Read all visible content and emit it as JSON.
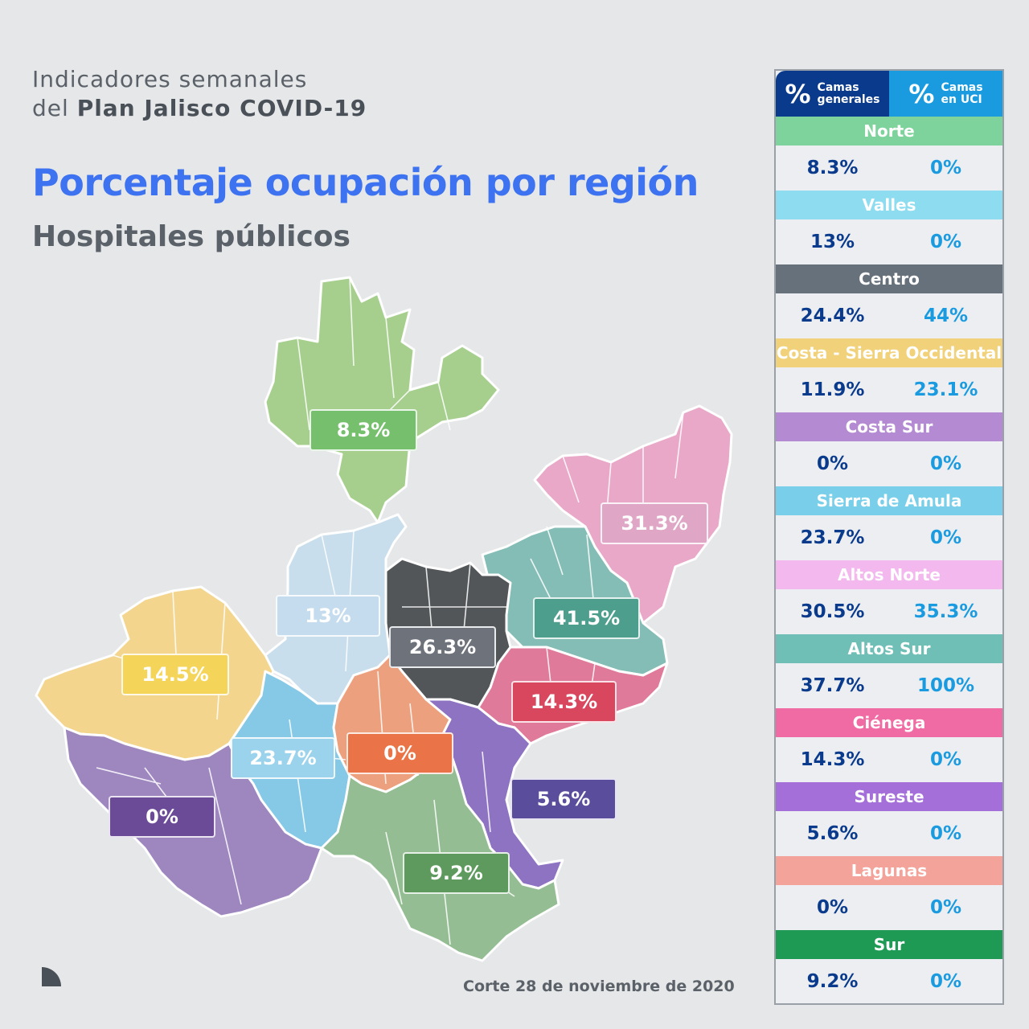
{
  "header": {
    "line1": "Indicadores semanales",
    "line2_prefix": "del ",
    "line2_bold": "Plan Jalisco COVID-19"
  },
  "title": "Porcentaje ocupación por región",
  "subtitle": "Hospitales públicos",
  "footer": {
    "date": "Corte 28 de noviembre de 2020"
  },
  "table": {
    "header": {
      "symbol": "%",
      "general_line1": "Camas",
      "general_line2": "generales",
      "uci_line1": "Camas",
      "uci_line2": "en UCI"
    },
    "regions": [
      {
        "name": "Norte",
        "general": "8.3%",
        "uci": "0%",
        "color": "#7dd39b"
      },
      {
        "name": "Valles",
        "general": "13%",
        "uci": "0%",
        "color": "#8ddcef"
      },
      {
        "name": "Centro",
        "general": "24.4%",
        "uci": "44%",
        "color": "#66717b"
      },
      {
        "name": "Costa - Sierra Occidental",
        "general": "11.9%",
        "uci": "23.1%",
        "color": "#f1d27a"
      },
      {
        "name": "Costa Sur",
        "general": "0%",
        "uci": "0%",
        "color": "#b48ad3"
      },
      {
        "name": "Sierra de Amula",
        "general": "23.7%",
        "uci": "0%",
        "color": "#79cfe9"
      },
      {
        "name": "Altos Norte",
        "general": "30.5%",
        "uci": "35.3%",
        "color": "#f3b8ee"
      },
      {
        "name": "Altos Sur",
        "general": "37.7%",
        "uci": "100%",
        "color": "#6fbfb6"
      },
      {
        "name": "Ciénega",
        "general": "14.3%",
        "uci": "0%",
        "color": "#f06aa4"
      },
      {
        "name": "Sureste",
        "general": "5.6%",
        "uci": "0%",
        "color": "#a46fd9"
      },
      {
        "name": "Lagunas",
        "general": "0%",
        "uci": "0%",
        "color": "#f3a39a"
      },
      {
        "name": "Sur",
        "general": "9.2%",
        "uci": "0%",
        "color": "#1f9a55"
      }
    ]
  },
  "map": {
    "labels": [
      {
        "text": "8.3%",
        "color": "#76bf6c"
      },
      {
        "text": "31.3%",
        "color": "#dfa6c6"
      },
      {
        "text": "13%",
        "color": "#c4dced"
      },
      {
        "text": "26.3%",
        "color": "#6e737b"
      },
      {
        "text": "41.5%",
        "color": "#4e9e8e"
      },
      {
        "text": "14.5%",
        "color": "#f4d55a"
      },
      {
        "text": "14.3%",
        "color": "#d9475f"
      },
      {
        "text": "23.7%",
        "color": "#9bd2ec"
      },
      {
        "text": "0%",
        "color": "#ea7448"
      },
      {
        "text": "5.6%",
        "color": "#5a4d9c"
      },
      {
        "text": "0%",
        "color": "#6b4b98"
      },
      {
        "text": "9.2%",
        "color": "#5e9a5e"
      }
    ]
  }
}
